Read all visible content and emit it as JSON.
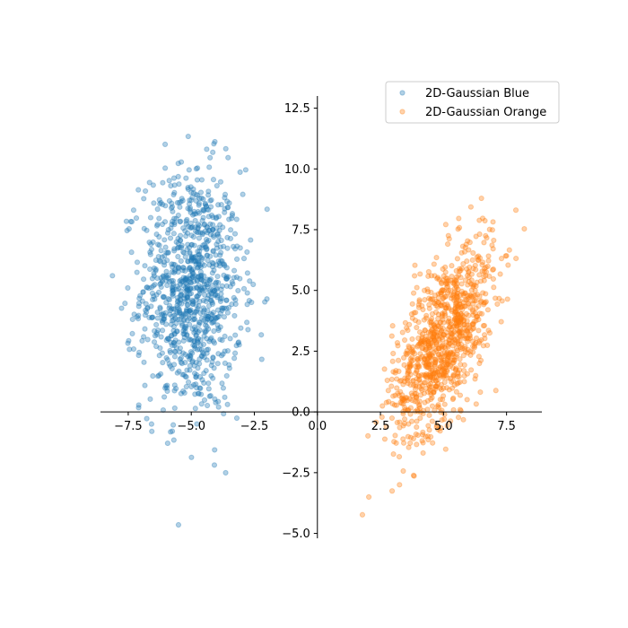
{
  "chart_data": {
    "type": "scatter",
    "title": "",
    "xlabel": "",
    "ylabel": "",
    "xlim": [
      -8.6,
      8.9
    ],
    "ylim": [
      -5.2,
      13.0
    ],
    "xticks": [
      -7.5,
      -5.0,
      -2.5,
      0.0,
      2.5,
      5.0,
      7.5
    ],
    "yticks": [
      -5.0,
      -2.5,
      0.0,
      2.5,
      5.0,
      7.5,
      10.0,
      12.5
    ],
    "xtick_labels": [
      "−7.5",
      "−5.0",
      "−2.5",
      "0.0",
      "2.5",
      "5.0",
      "7.5"
    ],
    "ytick_labels": [
      "−5.0",
      "−2.5",
      "0.0",
      "2.5",
      "5.0",
      "7.5",
      "10.0",
      "12.5"
    ],
    "spines": "centered at origin (left and bottom through zero)",
    "grid": false,
    "legend_position": "upper-right",
    "point_alpha": 0.35,
    "series": [
      {
        "name": "2D-Gaussian Blue",
        "color": "#1f77b4",
        "n_points": 1000,
        "mean": [
          -5.0,
          5.0
        ],
        "std": [
          1.0,
          2.5
        ],
        "correlation": 0.0
      },
      {
        "name": "2D-Gaussian Orange",
        "color": "#ff7f0e",
        "n_points": 1000,
        "mean": [
          5.0,
          3.0
        ],
        "std": [
          1.0,
          2.0
        ],
        "correlation": 0.6
      }
    ]
  }
}
